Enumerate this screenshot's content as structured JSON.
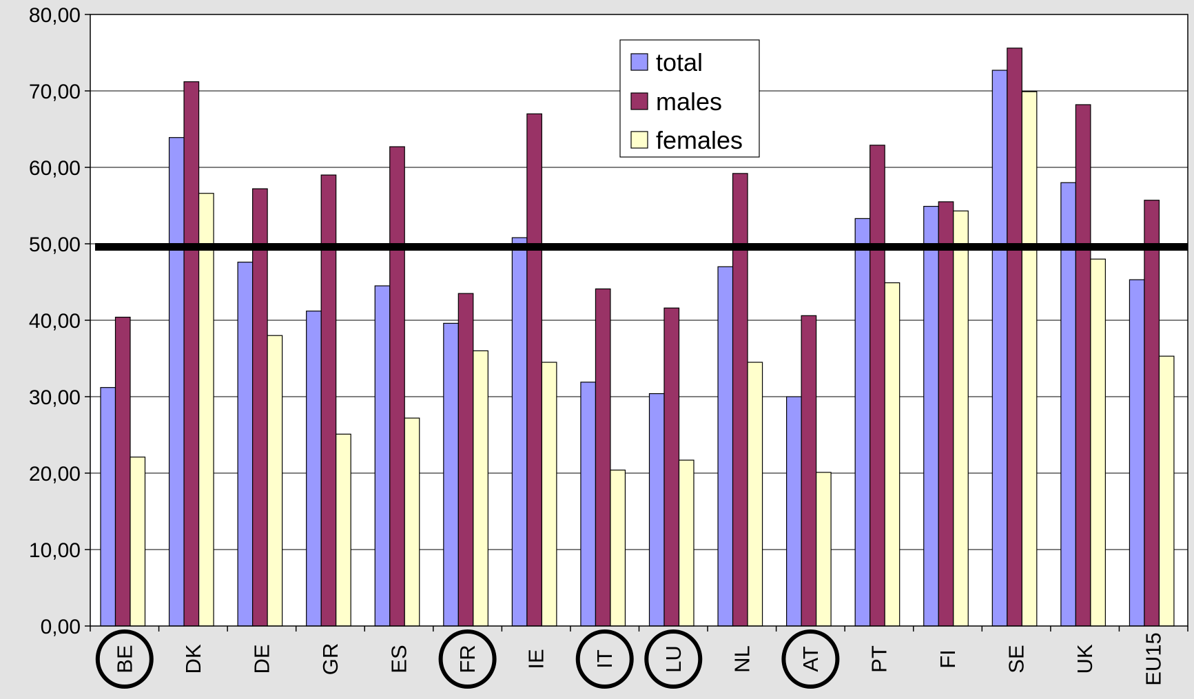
{
  "chart_data": {
    "type": "bar",
    "categories": [
      "BE",
      "DK",
      "DE",
      "GR",
      "ES",
      "FR",
      "IE",
      "IT",
      "LU",
      "NL",
      "AT",
      "PT",
      "FI",
      "SE",
      "UK",
      "EU15"
    ],
    "circled_categories": [
      "BE",
      "FR",
      "IT",
      "LU",
      "AT"
    ],
    "series": [
      {
        "name": "total",
        "color": "#9999ff",
        "values": [
          31.2,
          63.9,
          47.6,
          41.2,
          44.5,
          39.6,
          50.8,
          31.9,
          30.4,
          47.0,
          30.0,
          53.3,
          54.9,
          72.7,
          58.0,
          45.3
        ]
      },
      {
        "name": "males",
        "color": "#993366",
        "values": [
          40.4,
          71.2,
          57.2,
          59.0,
          62.7,
          43.5,
          67.0,
          44.1,
          41.6,
          59.2,
          40.6,
          62.9,
          55.5,
          75.6,
          68.2,
          55.7
        ]
      },
      {
        "name": "females",
        "color": "#ffffcc",
        "values": [
          22.1,
          56.6,
          38.0,
          25.1,
          27.2,
          36.0,
          34.5,
          20.4,
          21.7,
          34.5,
          20.1,
          44.9,
          54.3,
          69.9,
          48.0,
          35.3
        ]
      }
    ],
    "y_ticks": [
      "0,00",
      "10,00",
      "20,00",
      "30,00",
      "40,00",
      "50,00",
      "60,00",
      "70,00",
      "80,00"
    ],
    "ylim": [
      0,
      80
    ],
    "reference_line": 49.6,
    "grid": true,
    "legend_position": "top-center",
    "title": "",
    "xlabel": "",
    "ylabel": ""
  }
}
